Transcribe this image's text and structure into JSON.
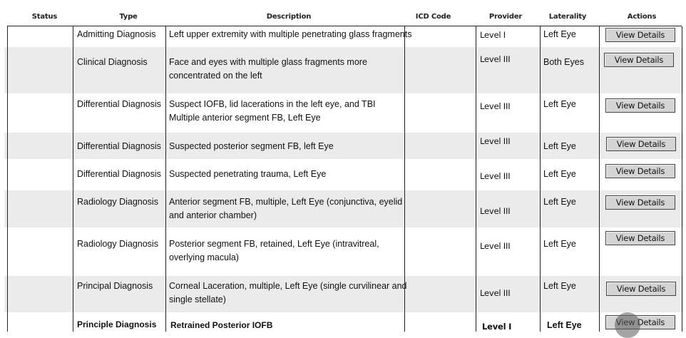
{
  "headers": {
    "status": "Status",
    "type": "Type",
    "description": "Description",
    "icd": "ICD Code",
    "provider": "Provider",
    "laterality": "Laterality",
    "actions": "Actions"
  },
  "rows": [
    {
      "type": "Admitting Diagnosis",
      "desc1": "Left upper extremity with multiple penetrating glass fragments",
      "desc2": "",
      "provider": "Level I",
      "laterality": "Left Eye",
      "action": "View Details"
    },
    {
      "type": "Clinical Diagnosis",
      "desc1": "Face and eyes with multiple glass fragments more",
      "desc2": "concentrated on the left",
      "provider": "Level III",
      "laterality": "Both Eyes",
      "action": "View Details"
    },
    {
      "type": "Differential Diagnosis",
      "desc1": "Suspect IOFB, lid lacerations in the left eye, and TBI",
      "desc2": "Multiple anterior segment FB, Left Eye",
      "provider": "Level III",
      "laterality": "Left Eye",
      "action": "View Details"
    },
    {
      "type": "Differential Diagnosis",
      "desc1": "Suspected posterior segment FB, left Eye",
      "desc2": "",
      "provider": "Level III",
      "laterality": "Left Eye",
      "action": "View Details"
    },
    {
      "type": "Differential Diagnosis",
      "desc1": "Suspected penetrating trauma, Left Eye",
      "desc2": "",
      "provider": "Level III",
      "laterality": "Left Eye",
      "action": "View Details"
    },
    {
      "type": "Radiology Diagnosis",
      "desc1": "Anterior segment FB, multiple, Left Eye (conjunctiva, eyelid",
      "desc2": "and anterior chamber)",
      "provider": "Level III",
      "laterality": "Left Eye",
      "action": "View Details"
    },
    {
      "type": "Radiology Diagnosis",
      "desc1": "Posterior segment FB, retained, Left Eye (intravitreal,",
      "desc2": "overlying macula)",
      "provider": "Level III",
      "laterality": "Left Eye",
      "action": "View Details"
    },
    {
      "type": "Principal Diagnosis",
      "desc1": "Corneal Laceration, multiple, Left Eye (single curvilinear and",
      "desc2": "single stellate)",
      "provider": "Level III",
      "laterality": "Left Eye",
      "action": "View Details"
    },
    {
      "type": "Principle Diagnosis",
      "desc1": "Retrained Posterior IOFB",
      "desc2": "",
      "provider": "Level I",
      "laterality": "Left Eye",
      "action": "View Details"
    }
  ]
}
